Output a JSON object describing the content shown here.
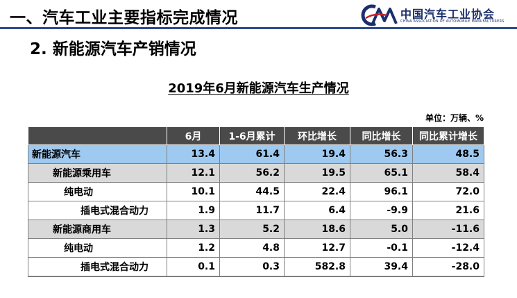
{
  "header": {
    "title": "一、汽车工业主要指标完成情况",
    "logo_name": "中国汽车工业协会",
    "logo_subtitle": "CHINA ASSOCIATION OF AUTOMOBILE MANUFACTURERS",
    "logo_mark": "CM"
  },
  "section": {
    "title": "2. 新能源汽车产销情况"
  },
  "table": {
    "title": "2019年6月新能源汽车生产情况",
    "unit": "单位：万辆、%",
    "columns": [
      "",
      "6月",
      "1-6月累计",
      "环比增长",
      "同比增长",
      "同比累计增长"
    ],
    "rows": [
      {
        "level": "lvl0",
        "label": "新能源汽车",
        "values": [
          "13.4",
          "61.4",
          "19.4",
          "56.3",
          "48.5"
        ]
      },
      {
        "level": "lvl1",
        "label": "新能源乘用车",
        "values": [
          "12.1",
          "56.2",
          "19.5",
          "65.1",
          "58.4"
        ]
      },
      {
        "level": "lvl2",
        "label": "纯电动",
        "values": [
          "10.1",
          "44.5",
          "22.4",
          "96.1",
          "72.0"
        ]
      },
      {
        "level": "lvl2 deep",
        "label": "插电式混合动力",
        "values": [
          "1.9",
          "11.7",
          "6.4",
          "-9.9",
          "21.6"
        ]
      },
      {
        "level": "lvl1",
        "label": "新能源商用车",
        "values": [
          "1.3",
          "5.2",
          "18.6",
          "5.0",
          "-11.6"
        ]
      },
      {
        "level": "lvl2",
        "label": "纯电动",
        "values": [
          "1.2",
          "4.8",
          "12.7",
          "-0.1",
          "-12.4"
        ]
      },
      {
        "level": "lvl2 deep last",
        "label": "插电式混合动力",
        "values": [
          "0.1",
          "0.3",
          "582.8",
          "39.4",
          "-28.0"
        ]
      }
    ]
  },
  "colors": {
    "header_rule": "#2e4a8c",
    "logo_navy": "#1a2f6b",
    "logo_red": "#c8202a",
    "table_header_bg": "#4a4a4a",
    "row_total_bg": "#9ec9f0",
    "row_subtotal_bg": "#d9d9d9"
  }
}
